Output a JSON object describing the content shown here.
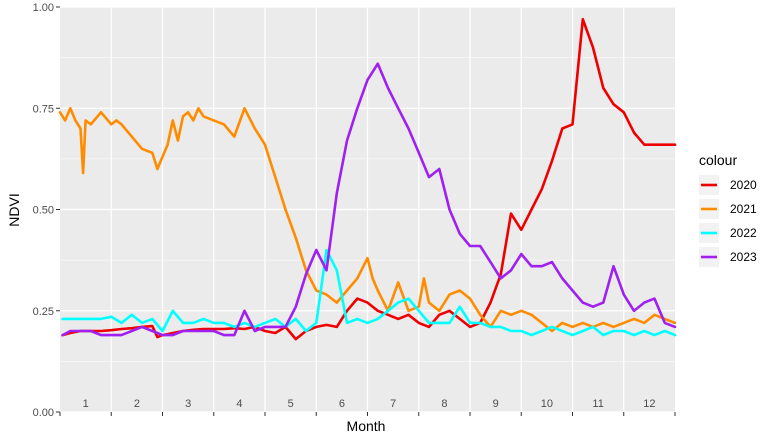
{
  "chart_data": {
    "type": "line",
    "xlabel": "Month",
    "ylabel": "NDVI",
    "xlim": [
      0,
      12
    ],
    "ylim": [
      0,
      1
    ],
    "month_labels": [
      "1",
      "2",
      "3",
      "4",
      "5",
      "6",
      "7",
      "8",
      "9",
      "10",
      "11",
      "12"
    ],
    "y_ticks": [
      "0.00",
      "0.25",
      "0.50",
      "0.75",
      "1.00"
    ],
    "grid": true,
    "legend": {
      "title": "colour",
      "position": "right"
    },
    "series": [
      {
        "name": "2020",
        "color": "#ee0000",
        "x": [
          0.05,
          0.2,
          0.4,
          0.6,
          0.8,
          1.0,
          1.2,
          1.4,
          1.6,
          1.8,
          1.9,
          2.0,
          2.1,
          2.2,
          2.4,
          2.6,
          2.8,
          3.0,
          3.2,
          3.4,
          3.6,
          3.8,
          4.0,
          4.2,
          4.4,
          4.6,
          4.8,
          5.0,
          5.2,
          5.4,
          5.6,
          5.8,
          6.0,
          6.2,
          6.4,
          6.6,
          6.8,
          7.0,
          7.2,
          7.4,
          7.6,
          7.8,
          8.0,
          8.2,
          8.4,
          8.6,
          8.8,
          9.0,
          9.2,
          9.4,
          9.6,
          9.8,
          10.0,
          10.2,
          10.4,
          10.6,
          10.8,
          11.0,
          11.2,
          11.4,
          11.6,
          11.7,
          11.8,
          11.9,
          12.0
        ],
        "y": [
          0.19,
          0.195,
          0.2,
          0.2,
          0.2,
          0.202,
          0.205,
          0.207,
          0.21,
          0.212,
          0.185,
          0.19,
          0.192,
          0.195,
          0.2,
          0.203,
          0.205,
          0.205,
          0.205,
          0.207,
          0.205,
          0.21,
          0.2,
          0.195,
          0.21,
          0.18,
          0.2,
          0.21,
          0.215,
          0.21,
          0.25,
          0.28,
          0.27,
          0.25,
          0.24,
          0.23,
          0.24,
          0.22,
          0.21,
          0.24,
          0.25,
          0.23,
          0.21,
          0.22,
          0.27,
          0.34,
          0.49,
          0.45,
          0.5,
          0.55,
          0.62,
          0.7,
          0.71,
          0.97,
          0.9,
          0.8,
          0.76,
          0.74,
          0.69,
          0.66,
          0.66,
          0.66,
          0.66,
          0.66,
          0.66
        ]
      },
      {
        "name": "2021",
        "color": "#ff8c00",
        "x": [
          0.0,
          0.1,
          0.2,
          0.3,
          0.4,
          0.45,
          0.5,
          0.6,
          0.8,
          1.0,
          1.1,
          1.2,
          1.4,
          1.6,
          1.8,
          1.9,
          2.0,
          2.1,
          2.2,
          2.3,
          2.4,
          2.5,
          2.6,
          2.7,
          2.8,
          3.0,
          3.2,
          3.4,
          3.6,
          3.8,
          4.0,
          4.1,
          4.2,
          4.4,
          4.6,
          4.8,
          5.0,
          5.2,
          5.4,
          5.6,
          5.8,
          6.0,
          6.1,
          6.2,
          6.4,
          6.6,
          6.8,
          7.0,
          7.1,
          7.2,
          7.4,
          7.6,
          7.8,
          8.0,
          8.2,
          8.4,
          8.6,
          8.8,
          9.0,
          9.2,
          9.4,
          9.6,
          9.8,
          10.0,
          10.2,
          10.4,
          10.6,
          10.8,
          11.0,
          11.2,
          11.4,
          11.6,
          11.8,
          12.0
        ],
        "y": [
          0.74,
          0.72,
          0.75,
          0.72,
          0.7,
          0.59,
          0.72,
          0.71,
          0.74,
          0.71,
          0.72,
          0.71,
          0.68,
          0.65,
          0.64,
          0.6,
          0.63,
          0.66,
          0.72,
          0.67,
          0.73,
          0.74,
          0.72,
          0.75,
          0.73,
          0.72,
          0.71,
          0.68,
          0.75,
          0.7,
          0.66,
          0.62,
          0.58,
          0.5,
          0.43,
          0.35,
          0.3,
          0.29,
          0.27,
          0.3,
          0.33,
          0.38,
          0.33,
          0.3,
          0.25,
          0.32,
          0.25,
          0.26,
          0.33,
          0.27,
          0.25,
          0.29,
          0.3,
          0.28,
          0.24,
          0.21,
          0.25,
          0.24,
          0.25,
          0.24,
          0.22,
          0.2,
          0.22,
          0.21,
          0.22,
          0.21,
          0.22,
          0.21,
          0.22,
          0.23,
          0.22,
          0.24,
          0.23,
          0.22
        ]
      },
      {
        "name": "2022",
        "color": "#00ffff",
        "x": [
          0.05,
          0.2,
          0.4,
          0.6,
          0.8,
          1.0,
          1.2,
          1.4,
          1.6,
          1.8,
          2.0,
          2.2,
          2.4,
          2.6,
          2.8,
          3.0,
          3.2,
          3.4,
          3.6,
          3.8,
          4.0,
          4.2,
          4.4,
          4.6,
          4.8,
          5.0,
          5.2,
          5.4,
          5.6,
          5.8,
          6.0,
          6.2,
          6.4,
          6.6,
          6.8,
          7.0,
          7.2,
          7.4,
          7.6,
          7.8,
          8.0,
          8.2,
          8.4,
          8.6,
          8.8,
          9.0,
          9.2,
          9.4,
          9.6,
          9.8,
          10.0,
          10.2,
          10.4,
          10.6,
          10.8,
          11.0,
          11.2,
          11.4,
          11.6,
          11.8,
          12.0
        ],
        "y": [
          0.23,
          0.23,
          0.23,
          0.23,
          0.23,
          0.235,
          0.22,
          0.24,
          0.22,
          0.23,
          0.2,
          0.25,
          0.22,
          0.22,
          0.23,
          0.22,
          0.22,
          0.21,
          0.22,
          0.21,
          0.22,
          0.23,
          0.21,
          0.23,
          0.2,
          0.22,
          0.4,
          0.35,
          0.22,
          0.23,
          0.22,
          0.23,
          0.25,
          0.27,
          0.28,
          0.25,
          0.22,
          0.22,
          0.22,
          0.26,
          0.22,
          0.22,
          0.21,
          0.21,
          0.2,
          0.2,
          0.19,
          0.2,
          0.21,
          0.2,
          0.19,
          0.2,
          0.21,
          0.19,
          0.2,
          0.2,
          0.19,
          0.2,
          0.19,
          0.2,
          0.19
        ]
      },
      {
        "name": "2023",
        "color": "#a020f0",
        "x": [
          0.05,
          0.2,
          0.4,
          0.6,
          0.8,
          1.0,
          1.2,
          1.4,
          1.6,
          1.8,
          2.0,
          2.2,
          2.4,
          2.6,
          2.8,
          3.0,
          3.2,
          3.4,
          3.6,
          3.8,
          4.0,
          4.2,
          4.4,
          4.6,
          4.8,
          5.0,
          5.2,
          5.4,
          5.6,
          5.8,
          6.0,
          6.2,
          6.4,
          6.6,
          6.8,
          7.0,
          7.2,
          7.4,
          7.6,
          7.8,
          8.0,
          8.2,
          8.4,
          8.6,
          8.8,
          9.0,
          9.2,
          9.4,
          9.6,
          9.8,
          10.0,
          10.2,
          10.4,
          10.6,
          10.8,
          11.0,
          11.2,
          11.4,
          11.6,
          11.8,
          12.0
        ],
        "y": [
          0.19,
          0.2,
          0.2,
          0.2,
          0.19,
          0.19,
          0.19,
          0.2,
          0.21,
          0.2,
          0.19,
          0.19,
          0.2,
          0.2,
          0.2,
          0.2,
          0.19,
          0.19,
          0.25,
          0.2,
          0.21,
          0.21,
          0.21,
          0.26,
          0.34,
          0.4,
          0.35,
          0.54,
          0.67,
          0.75,
          0.82,
          0.86,
          0.8,
          0.75,
          0.7,
          0.64,
          0.58,
          0.6,
          0.5,
          0.44,
          0.41,
          0.41,
          0.37,
          0.33,
          0.35,
          0.39,
          0.36,
          0.36,
          0.37,
          0.33,
          0.3,
          0.27,
          0.26,
          0.27,
          0.36,
          0.29,
          0.25,
          0.27,
          0.28,
          0.22,
          0.21
        ]
      }
    ]
  }
}
